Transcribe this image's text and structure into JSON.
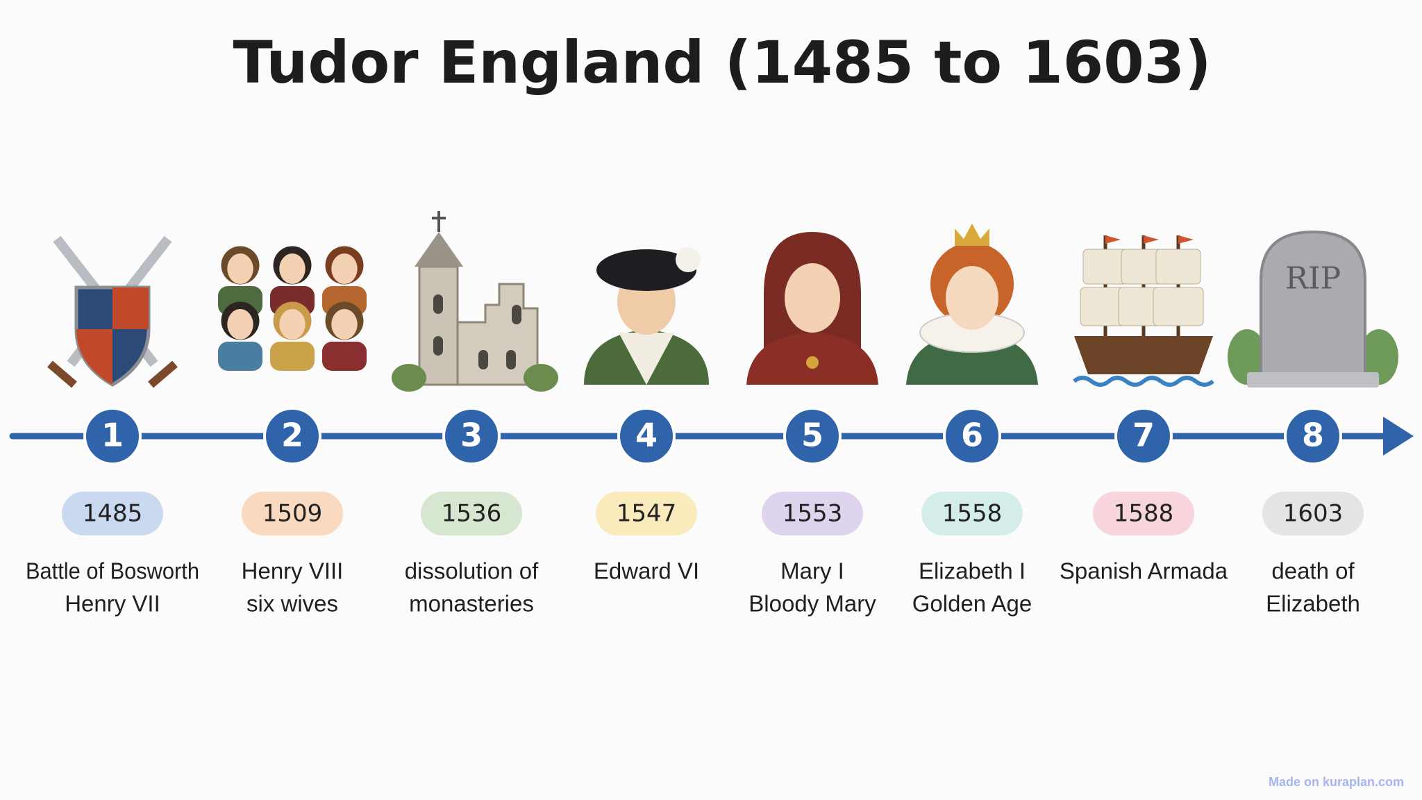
{
  "title": "Tudor England (1485 to 1603)",
  "events": [
    {
      "number": "1",
      "year": "1485",
      "lines": [
        "Battle of Bosworth",
        "Henry VII"
      ],
      "color": "#c9d9ef"
    },
    {
      "number": "2",
      "year": "1509",
      "lines": [
        "Henry VIII",
        "six wives"
      ],
      "color": "#f9d9c0"
    },
    {
      "number": "3",
      "year": "1536",
      "lines": [
        "dissolution of",
        "monasteries"
      ],
      "color": "#d6e6d0"
    },
    {
      "number": "4",
      "year": "1547",
      "lines": [
        "Edward VI"
      ],
      "color": "#faebbc"
    },
    {
      "number": "5",
      "year": "1553",
      "lines": [
        "Mary I",
        "Bloody Mary"
      ],
      "color": "#ded4ed"
    },
    {
      "number": "6",
      "year": "1558",
      "lines": [
        "Elizabeth I",
        "Golden Age"
      ],
      "color": "#d4ecea"
    },
    {
      "number": "7",
      "year": "1588",
      "lines": [
        "Spanish Armada"
      ],
      "color": "#f8d4dc"
    },
    {
      "number": "8",
      "year": "1603",
      "lines": [
        "death of",
        "Elizabeth"
      ],
      "color": "#e4e4e4",
      "icon_text": "RIP"
    }
  ],
  "watermark": "Made on kuraplan.com"
}
